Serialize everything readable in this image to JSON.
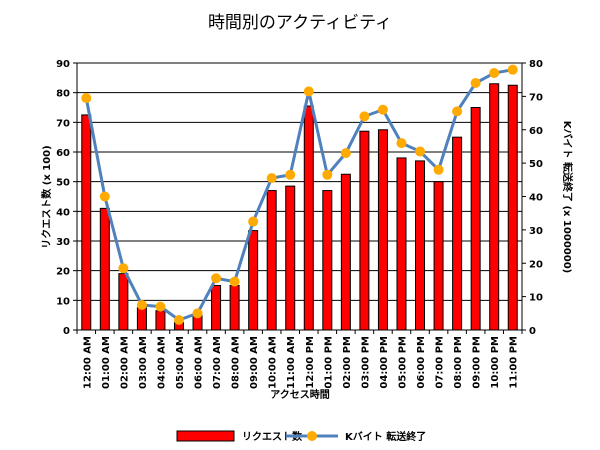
{
  "chart_data": {
    "type": "bar",
    "title": "時間別のアクティビティ",
    "xlabel": "アクセス時間",
    "ylabel": "リクエスト数 (x 100)",
    "y2label": "Kバイト 転送終了 (x 1000000)",
    "ylim": [
      0,
      90
    ],
    "y2lim": [
      0,
      80
    ],
    "yticks": [
      0,
      10,
      20,
      30,
      40,
      50,
      60,
      70,
      80,
      90
    ],
    "y2ticks": [
      0,
      10,
      20,
      30,
      40,
      50,
      60,
      70,
      80
    ],
    "grid": true,
    "legend_position": "bottom",
    "categories": [
      "12:00 AM",
      "01:00 AM",
      "02:00 AM",
      "03:00 AM",
      "04:00 AM",
      "05:00 AM",
      "06:00 AM",
      "07:00 AM",
      "08:00 AM",
      "09:00 AM",
      "10:00 AM",
      "11:00 AM",
      "12:00 PM",
      "01:00 PM",
      "02:00 PM",
      "03:00 PM",
      "04:00 PM",
      "05:00 PM",
      "06:00 PM",
      "07:00 PM",
      "08:00 PM",
      "09:00 PM",
      "10:00 PM",
      "11:00 PM"
    ],
    "series": [
      {
        "name": "リクエスト数",
        "type": "bar",
        "axis": "left",
        "color": "#ff0000",
        "values": [
          72.5,
          41,
          19,
          7.5,
          6.5,
          2.5,
          5,
          15,
          15,
          33.5,
          47,
          48.5,
          75.5,
          47,
          52.5,
          67,
          67.5,
          58,
          57,
          50,
          65,
          75,
          83,
          82.5
        ]
      },
      {
        "name": "Kバイト 転送終了",
        "type": "line",
        "axis": "right",
        "color": "#4f81bd",
        "marker_color": "#ffaa00",
        "values": [
          69.5,
          40,
          18.5,
          7.5,
          7,
          3,
          5,
          15.5,
          14.5,
          32.5,
          45.5,
          46.5,
          71.5,
          46.5,
          53,
          64,
          66,
          56,
          53.5,
          48,
          65.5,
          74,
          77,
          78
        ]
      }
    ]
  }
}
